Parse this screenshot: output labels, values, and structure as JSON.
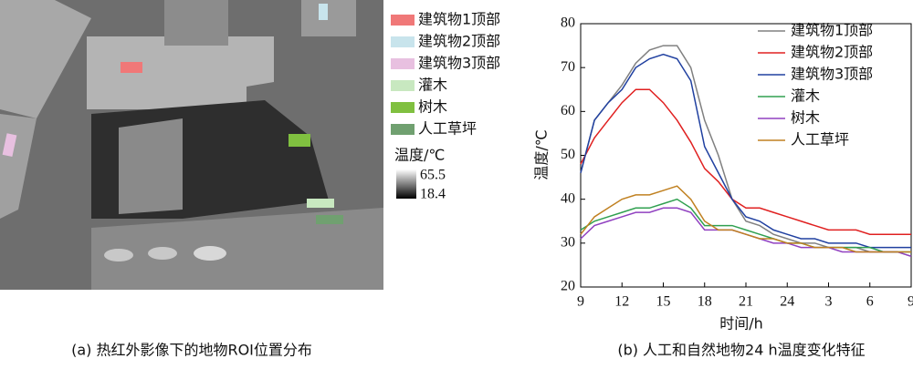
{
  "image_panel": {
    "legend": [
      {
        "label": "建筑物1顶部",
        "color": "#f07878"
      },
      {
        "label": "建筑物2顶部",
        "color": "#c8e4ec"
      },
      {
        "label": "建筑物3顶部",
        "color": "#e8c0e0"
      },
      {
        "label": "灌木",
        "color": "#c8e8c0"
      },
      {
        "label": "树木",
        "color": "#80c040"
      },
      {
        "label": "人工草坪",
        "color": "#70a070"
      }
    ],
    "colorbar_title": "温度/℃",
    "colorbar_max": "65.5",
    "colorbar_min": "18.4",
    "caption": "(a) 热红外影像下的地物ROI位置分布"
  },
  "chart_data": {
    "type": "line",
    "caption": "(b) 人工和自然地物24 h温度变化特征",
    "xlabel": "时间/h",
    "ylabel": "温度/℃",
    "x": [
      9,
      10,
      11,
      12,
      13,
      14,
      15,
      16,
      17,
      18,
      19,
      20,
      21,
      22,
      23,
      24,
      25,
      26,
      27,
      28,
      29,
      30,
      31,
      32,
      33
    ],
    "xlim": [
      9,
      33
    ],
    "xticks": [
      9,
      12,
      15,
      18,
      21,
      24,
      {
        "value": 27,
        "label": "3"
      },
      {
        "value": 30,
        "label": "6"
      },
      {
        "value": 33,
        "label": "9"
      }
    ],
    "ylim": [
      20,
      80
    ],
    "yticks": [
      20,
      30,
      40,
      50,
      60,
      70,
      80
    ],
    "series": [
      {
        "name": "建筑物1顶部",
        "color": "#808080",
        "values": [
          46,
          58,
          62,
          66,
          71,
          74,
          75,
          75,
          70,
          58,
          50,
          40,
          35,
          34,
          32,
          31,
          30,
          30,
          29,
          29,
          29,
          28,
          28,
          28,
          27
        ]
      },
      {
        "name": "建筑物2顶部",
        "color": "#e02020",
        "values": [
          48,
          54,
          58,
          62,
          65,
          65,
          62,
          58,
          53,
          47,
          44,
          40,
          38,
          38,
          37,
          36,
          35,
          34,
          33,
          33,
          33,
          32,
          32,
          32,
          32
        ]
      },
      {
        "name": "建筑物3顶部",
        "color": "#2040a0",
        "values": [
          46,
          58,
          62,
          65,
          70,
          72,
          73,
          72,
          67,
          52,
          46,
          40,
          36,
          35,
          33,
          32,
          31,
          31,
          30,
          30,
          30,
          29,
          29,
          29,
          29
        ]
      },
      {
        "name": "灌木",
        "color": "#30a050",
        "values": [
          33,
          35,
          36,
          37,
          38,
          38,
          39,
          40,
          38,
          34,
          34,
          34,
          33,
          32,
          31,
          30,
          30,
          29,
          29,
          29,
          29,
          29,
          28,
          28,
          28
        ]
      },
      {
        "name": "树木",
        "color": "#9040c0",
        "values": [
          31,
          34,
          35,
          36,
          37,
          37,
          38,
          38,
          37,
          33,
          33,
          33,
          32,
          31,
          30,
          30,
          29,
          29,
          29,
          28,
          28,
          28,
          28,
          28,
          27
        ]
      },
      {
        "name": "人工草坪",
        "color": "#c08020",
        "values": [
          32,
          36,
          38,
          40,
          41,
          41,
          42,
          43,
          40,
          35,
          33,
          33,
          32,
          31,
          31,
          30,
          30,
          29,
          29,
          29,
          28,
          28,
          28,
          28,
          28
        ]
      }
    ]
  }
}
